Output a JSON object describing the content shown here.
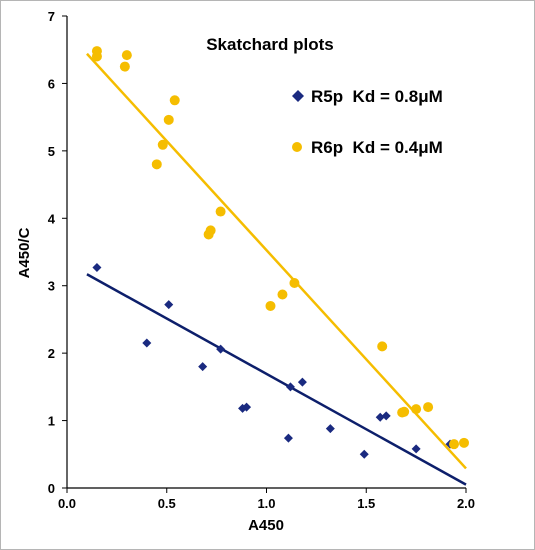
{
  "chart_data": {
    "type": "scatter",
    "title": "Skatchard plots",
    "xlabel": "A450",
    "ylabel": "A450/C",
    "xlim": [
      0,
      2.0
    ],
    "ylim": [
      0,
      7
    ],
    "x_ticks": [
      "0.0",
      "0.5",
      "1.0",
      "1.5",
      "2.0"
    ],
    "y_ticks": [
      "0",
      "1",
      "2",
      "3",
      "4",
      "5",
      "6",
      "7"
    ],
    "grid": false,
    "legend_position": "top-right",
    "series": [
      {
        "name": "R5p  Kd = 0.8μM",
        "marker": "diamond",
        "color": "#1a2a80",
        "points": [
          [
            0.15,
            3.27
          ],
          [
            0.4,
            2.15
          ],
          [
            0.51,
            2.72
          ],
          [
            0.68,
            1.8
          ],
          [
            0.77,
            2.06
          ],
          [
            0.88,
            1.18
          ],
          [
            0.9,
            1.2
          ],
          [
            1.11,
            0.74
          ],
          [
            1.12,
            1.5
          ],
          [
            1.18,
            1.57
          ],
          [
            1.32,
            0.88
          ],
          [
            1.49,
            0.5
          ],
          [
            1.57,
            1.05
          ],
          [
            1.6,
            1.07
          ],
          [
            1.75,
            0.58
          ],
          [
            1.92,
            0.65
          ]
        ],
        "trendline": {
          "x": [
            0.1,
            2.0
          ],
          "y": [
            3.17,
            0.05
          ],
          "color": "#0d1f6b"
        }
      },
      {
        "name": "R6p  Kd = 0.4μM",
        "marker": "circle",
        "color": "#f5bd00",
        "points": [
          [
            0.15,
            6.4
          ],
          [
            0.15,
            6.48
          ],
          [
            0.29,
            6.25
          ],
          [
            0.3,
            6.42
          ],
          [
            0.45,
            4.8
          ],
          [
            0.48,
            5.09
          ],
          [
            0.51,
            5.46
          ],
          [
            0.54,
            5.75
          ],
          [
            0.71,
            3.76
          ],
          [
            0.72,
            3.82
          ],
          [
            0.77,
            4.1
          ],
          [
            1.02,
            2.7
          ],
          [
            1.08,
            2.87
          ],
          [
            1.14,
            3.04
          ],
          [
            1.58,
            2.1
          ],
          [
            1.68,
            1.12
          ],
          [
            1.69,
            1.13
          ],
          [
            1.75,
            1.17
          ],
          [
            1.81,
            1.2
          ],
          [
            1.94,
            0.65
          ],
          [
            1.99,
            0.67
          ]
        ],
        "trendline": {
          "x": [
            0.1,
            2.0
          ],
          "y": [
            6.44,
            0.29
          ],
          "color": "#f5bd00"
        }
      }
    ]
  }
}
